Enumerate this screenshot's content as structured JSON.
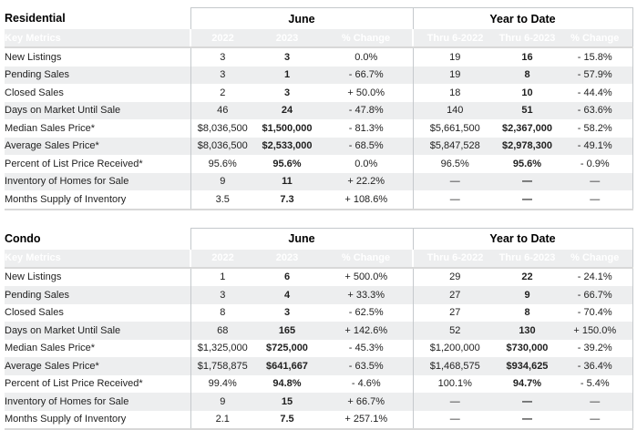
{
  "colors": {
    "header_bg": "#0d9ddb",
    "header_text": "#ffffff",
    "stripe": "#edeeef",
    "border": "#c5c9cc"
  },
  "tables": [
    {
      "title": "Residential",
      "period_label": "June",
      "ytd_label": "Year to Date",
      "header": {
        "metrics": "Key Metrics",
        "cols": [
          "2022",
          "2023",
          "% Change",
          "Thru 6-2022",
          "Thru 6-2023",
          "% Change"
        ]
      },
      "rows": [
        {
          "label": "New Listings",
          "values": [
            "3",
            "3",
            "0.0%",
            "19",
            "16",
            "- 15.8%"
          ]
        },
        {
          "label": "Pending Sales",
          "values": [
            "3",
            "1",
            "- 66.7%",
            "19",
            "8",
            "- 57.9%"
          ]
        },
        {
          "label": "Closed Sales",
          "values": [
            "2",
            "3",
            "+ 50.0%",
            "18",
            "10",
            "- 44.4%"
          ]
        },
        {
          "label": "Days on Market Until Sale",
          "values": [
            "46",
            "24",
            "- 47.8%",
            "140",
            "51",
            "- 63.6%"
          ]
        },
        {
          "label": "Median Sales Price*",
          "values": [
            "$8,036,500",
            "$1,500,000",
            "- 81.3%",
            "$5,661,500",
            "$2,367,000",
            "- 58.2%"
          ]
        },
        {
          "label": "Average Sales Price*",
          "values": [
            "$8,036,500",
            "$2,533,000",
            "- 68.5%",
            "$5,847,528",
            "$2,978,300",
            "- 49.1%"
          ]
        },
        {
          "label": "Percent of List Price Received*",
          "values": [
            "95.6%",
            "95.6%",
            "0.0%",
            "96.5%",
            "95.6%",
            "- 0.9%"
          ]
        },
        {
          "label": "Inventory of Homes for Sale",
          "values": [
            "9",
            "11",
            "+ 22.2%",
            "—",
            "—",
            "—"
          ]
        },
        {
          "label": "Months Supply of Inventory",
          "values": [
            "3.5",
            "7.3",
            "+ 108.6%",
            "—",
            "—",
            "—"
          ]
        }
      ]
    },
    {
      "title": "Condo",
      "period_label": "June",
      "ytd_label": "Year to Date",
      "header": {
        "metrics": "Key Metrics",
        "cols": [
          "2022",
          "2023",
          "% Change",
          "Thru 6-2022",
          "Thru 6-2023",
          "% Change"
        ]
      },
      "rows": [
        {
          "label": "New Listings",
          "values": [
            "1",
            "6",
            "+ 500.0%",
            "29",
            "22",
            "- 24.1%"
          ]
        },
        {
          "label": "Pending Sales",
          "values": [
            "3",
            "4",
            "+ 33.3%",
            "27",
            "9",
            "- 66.7%"
          ]
        },
        {
          "label": "Closed Sales",
          "values": [
            "8",
            "3",
            "- 62.5%",
            "27",
            "8",
            "- 70.4%"
          ]
        },
        {
          "label": "Days on Market Until Sale",
          "values": [
            "68",
            "165",
            "+ 142.6%",
            "52",
            "130",
            "+ 150.0%"
          ]
        },
        {
          "label": "Median Sales Price*",
          "values": [
            "$1,325,000",
            "$725,000",
            "- 45.3%",
            "$1,200,000",
            "$730,000",
            "- 39.2%"
          ]
        },
        {
          "label": "Average Sales Price*",
          "values": [
            "$1,758,875",
            "$641,667",
            "- 63.5%",
            "$1,468,575",
            "$934,625",
            "- 36.4%"
          ]
        },
        {
          "label": "Percent of List Price Received*",
          "values": [
            "99.4%",
            "94.8%",
            "- 4.6%",
            "100.1%",
            "94.7%",
            "- 5.4%"
          ]
        },
        {
          "label": "Inventory of Homes for Sale",
          "values": [
            "9",
            "15",
            "+ 66.7%",
            "—",
            "—",
            "—"
          ]
        },
        {
          "label": "Months Supply of Inventory",
          "values": [
            "2.1",
            "7.5",
            "+ 257.1%",
            "—",
            "—",
            "—"
          ]
        }
      ]
    }
  ]
}
